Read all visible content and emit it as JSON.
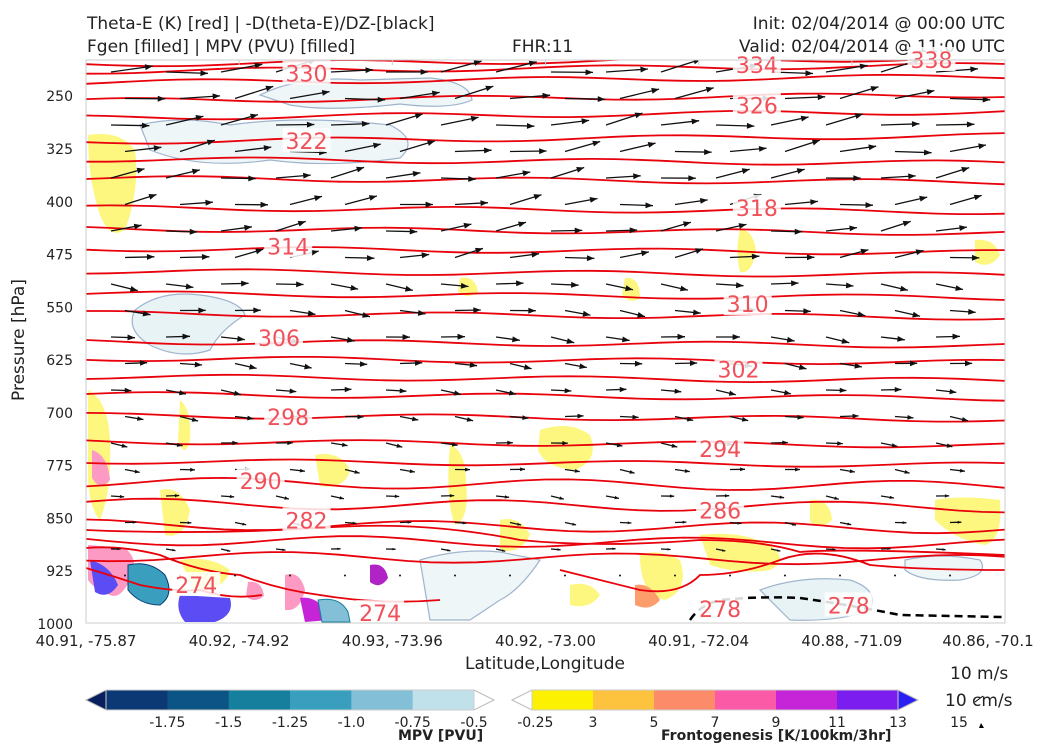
{
  "header": {
    "title_left_1": "Theta-E (K) [red] | -D(theta-E)/DZ-[black]",
    "title_left_2": "Fgen [filled] | MPV (PVU) [filled]",
    "fhr": "FHR:11",
    "init": "Init: 02/04/2014 @ 00:00 UTC",
    "valid": "Valid: 02/04/2014 @ 11:00 UTC"
  },
  "chart_data": {
    "type": "cross-section",
    "xlabel": "Latitude,Longitude",
    "ylabel": "Pressure [hPa]",
    "x_ticks": [
      "40.91, -75.87",
      "40.92, -74.92",
      "40.93, -73.96",
      "40.92, -73.00",
      "40.91, -72.04",
      "40.88, -71.09",
      "40.86, -70.1"
    ],
    "y_ticks": [
      250,
      325,
      400,
      475,
      550,
      625,
      700,
      775,
      850,
      925,
      1000
    ],
    "ylim": [
      1000,
      200
    ],
    "y_reversed": true,
    "isotherm_color": "#e8000b",
    "isotherm_label_color": "#f0505a",
    "isotherm_labels": [
      {
        "value": "330",
        "x": 0.24,
        "p": 219
      },
      {
        "value": "334",
        "x": 0.73,
        "p": 207
      },
      {
        "value": "338",
        "x": 0.92,
        "p": 200
      },
      {
        "value": "326",
        "x": 0.73,
        "p": 265
      },
      {
        "value": "322",
        "x": 0.24,
        "p": 315
      },
      {
        "value": "318",
        "x": 0.73,
        "p": 410
      },
      {
        "value": "314",
        "x": 0.22,
        "p": 465
      },
      {
        "value": "310",
        "x": 0.72,
        "p": 547
      },
      {
        "value": "306",
        "x": 0.21,
        "p": 595
      },
      {
        "value": "302",
        "x": 0.71,
        "p": 640
      },
      {
        "value": "298",
        "x": 0.22,
        "p": 707
      },
      {
        "value": "294",
        "x": 0.69,
        "p": 753
      },
      {
        "value": "290",
        "x": 0.19,
        "p": 798
      },
      {
        "value": "286",
        "x": 0.69,
        "p": 840
      },
      {
        "value": "282",
        "x": 0.24,
        "p": 854
      },
      {
        "value": "274",
        "x": 0.12,
        "p": 946
      },
      {
        "value": "274",
        "x": 0.32,
        "p": 986
      },
      {
        "value": "278",
        "x": 0.69,
        "p": 980
      },
      {
        "value": "278",
        "x": 0.83,
        "p": 975
      }
    ],
    "wind_label_1": "10 m/s",
    "wind_label_2": "10 cm/s",
    "colorbars": [
      {
        "name": "MPV [PVU]",
        "ticks": [
          "-1.75",
          "-1.5",
          "-1.25",
          "-1.0",
          "-0.75",
          "-0.5",
          "-0.25"
        ],
        "colors": [
          "#08215e",
          "#0c3873",
          "#0b5485",
          "#177f9e",
          "#3a9fbf",
          "#83c0d7",
          "#c1e1ea",
          "#ffffff"
        ]
      },
      {
        "name": "Frontogenesis [K/100km/3hr]",
        "ticks": [
          "3",
          "5",
          "7",
          "9",
          "11",
          "13",
          "15"
        ],
        "colors": [
          "#ffffff",
          "#fdf102",
          "#fdc23e",
          "#fc8b6a",
          "#fb5aa6",
          "#c525d6",
          "#7c1df0",
          "#2b1ff4"
        ]
      }
    ]
  }
}
